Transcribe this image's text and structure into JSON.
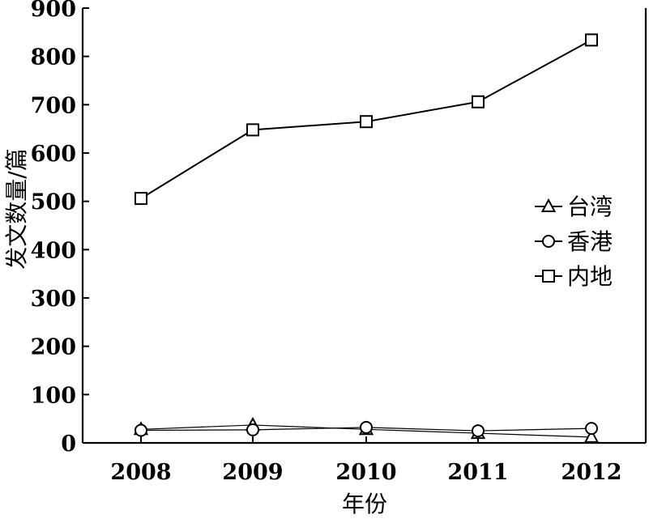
{
  "chart_data": {
    "type": "line",
    "xlabel": "年份",
    "ylabel": "发文数量/篇",
    "categories": [
      "2008",
      "2009",
      "2010",
      "2011",
      "2012"
    ],
    "ylim": [
      0,
      900
    ],
    "yticks": [
      "0",
      "100",
      "200",
      "300",
      "400",
      "500",
      "600",
      "700",
      "800",
      "900"
    ],
    "grid": false,
    "legend_position": "right",
    "series": [
      {
        "name": "台湾",
        "marker": "triangle",
        "values": [
          28,
          37,
          28,
          20,
          12
        ]
      },
      {
        "name": "香港",
        "marker": "circle",
        "values": [
          26,
          27,
          32,
          25,
          30
        ]
      },
      {
        "name": "内地",
        "marker": "square",
        "values": [
          506,
          648,
          665,
          706,
          834
        ]
      }
    ]
  }
}
